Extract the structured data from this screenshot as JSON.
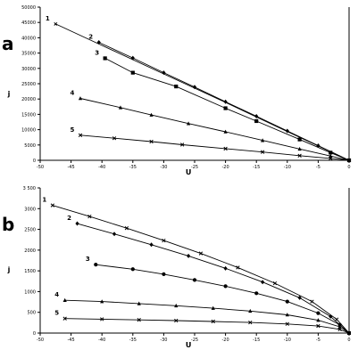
{
  "chart_data": [
    {
      "type": "line",
      "panel_label": "a",
      "xlabel": "U",
      "ylabel": "j",
      "xlim": [
        -50,
        0
      ],
      "ylim": [
        0,
        50000
      ],
      "xticks": [
        -50,
        -45,
        -40,
        -35,
        -30,
        -25,
        -20,
        -15,
        -10,
        -5,
        0
      ],
      "xtick_labels": [
        "-50",
        "-45",
        "-40",
        "-35",
        "-30",
        "-25",
        "-20",
        "-15",
        "-10",
        "-5",
        "0"
      ],
      "yticks": [
        0,
        5000,
        10000,
        15000,
        20000,
        25000,
        30000,
        35000,
        40000,
        45000,
        50000
      ],
      "ytick_labels": [
        "0",
        "5000",
        "10000",
        "15000",
        "20000",
        "25000",
        "30000",
        "35000",
        "40000",
        "45000",
        "50000"
      ],
      "grid": false,
      "series": [
        {
          "name": "1",
          "marker": "line",
          "x": [
            -47.5,
            -40,
            -30,
            -20,
            -10,
            -5,
            0
          ],
          "y": [
            44500,
            37500,
            28200,
            18900,
            9400,
            4700,
            0
          ]
        },
        {
          "name": "2",
          "marker": "diamond",
          "x": [
            -40.5,
            -35,
            -30,
            -25,
            -20,
            -15,
            -10,
            -5,
            0
          ],
          "y": [
            38500,
            33400,
            28600,
            23900,
            19100,
            14400,
            9600,
            4800,
            0
          ]
        },
        {
          "name": "3",
          "marker": "square",
          "x": [
            -39.5,
            -35,
            -28,
            -20,
            -15,
            -8,
            -3,
            0
          ],
          "y": [
            33300,
            28600,
            24100,
            17000,
            12800,
            6800,
            2500,
            0
          ]
        },
        {
          "name": "4",
          "marker": "triangle",
          "x": [
            -43.5,
            -37,
            -32,
            -26,
            -20,
            -14,
            -8,
            -3,
            0
          ],
          "y": [
            20200,
            17200,
            14800,
            12000,
            9300,
            6500,
            3700,
            1400,
            0
          ]
        },
        {
          "name": "5",
          "marker": "x",
          "x": [
            -43.5,
            -38,
            -32,
            -27,
            -20,
            -14,
            -8,
            -3,
            0
          ],
          "y": [
            8200,
            7200,
            6100,
            5100,
            3800,
            2700,
            1500,
            600,
            0
          ]
        }
      ]
    },
    {
      "type": "line",
      "panel_label": "b",
      "xlabel": "U",
      "ylabel": "j",
      "xlim": [
        -50,
        0
      ],
      "ylim": [
        0,
        3500
      ],
      "xticks": [
        -50,
        -45,
        -40,
        -35,
        -30,
        -25,
        -20,
        -15,
        -10,
        -5,
        0
      ],
      "xtick_labels": [
        "-50",
        "-45",
        "-40",
        "-35",
        "-30",
        "-25",
        "-20",
        "-15",
        "-10",
        "-5",
        "0"
      ],
      "yticks": [
        0,
        500,
        1000,
        1500,
        2000,
        2500,
        3000,
        3500
      ],
      "ytick_labels": [
        "0",
        "500",
        "1000",
        "1500",
        "2000",
        "2500",
        "3000",
        "3 500"
      ],
      "grid": false,
      "series": [
        {
          "name": "1",
          "marker": "x",
          "x": [
            -48,
            -42,
            -36,
            -30,
            -24,
            -18,
            -12,
            -6,
            -2,
            0
          ],
          "y": [
            3080,
            2810,
            2530,
            2230,
            1920,
            1580,
            1200,
            760,
            330,
            0
          ]
        },
        {
          "name": "2",
          "marker": "diamond",
          "x": [
            -44,
            -38,
            -32,
            -26,
            -20,
            -14,
            -8,
            -3,
            0
          ],
          "y": [
            2640,
            2390,
            2130,
            1860,
            1560,
            1230,
            850,
            400,
            0
          ]
        },
        {
          "name": "3",
          "marker": "circle",
          "x": [
            -41,
            -35,
            -30,
            -25,
            -20,
            -15,
            -10,
            -5,
            -1.5,
            0
          ],
          "y": [
            1650,
            1540,
            1420,
            1280,
            1130,
            960,
            760,
            480,
            200,
            0
          ]
        },
        {
          "name": "4",
          "marker": "triangle",
          "x": [
            -46,
            -40,
            -34,
            -28,
            -22,
            -16,
            -10,
            -5,
            -1.5,
            0
          ],
          "y": [
            790,
            760,
            710,
            660,
            600,
            530,
            440,
            310,
            150,
            0
          ]
        },
        {
          "name": "5",
          "marker": "x",
          "x": [
            -46,
            -40,
            -34,
            -28,
            -22,
            -16,
            -10,
            -5,
            -1.5,
            0
          ],
          "y": [
            350,
            335,
            318,
            300,
            280,
            255,
            220,
            170,
            90,
            0
          ]
        }
      ]
    }
  ]
}
